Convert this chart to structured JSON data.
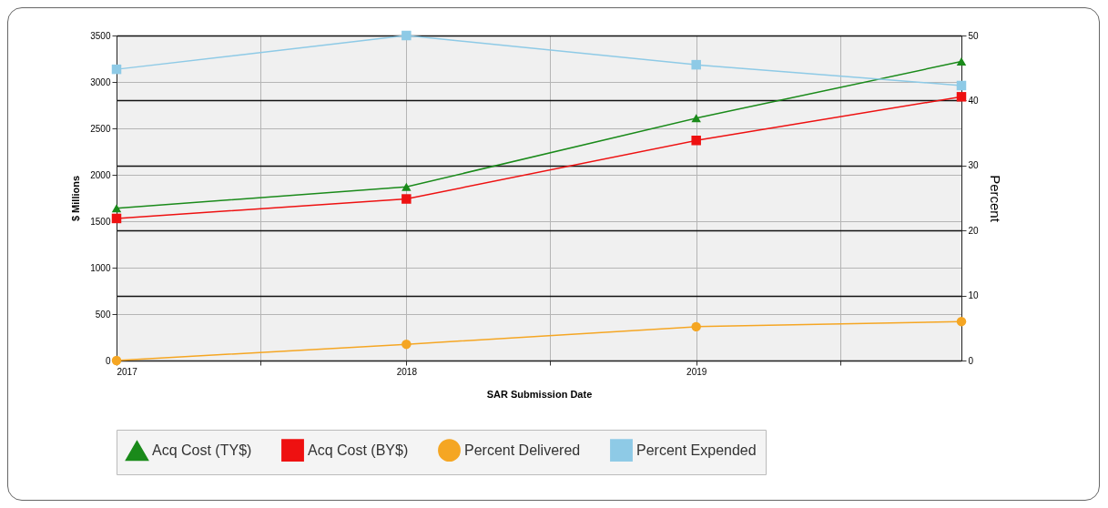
{
  "chart_data": {
    "type": "line",
    "xlabel": "SAR Submission Date",
    "ylabel": "$ Millions",
    "y2label": "Percent",
    "x": [
      "2017-01",
      "2018-01",
      "2019-01",
      "2019-12"
    ],
    "xlim": [
      "2017-01",
      "2019-12"
    ],
    "xticks": [
      {
        "value": "2017-01",
        "label": "2017"
      },
      {
        "value": "2017-07",
        "label": null
      },
      {
        "value": "2018-01",
        "label": "2018"
      },
      {
        "value": "2018-07",
        "label": null
      },
      {
        "value": "2019-01",
        "label": "2019"
      },
      {
        "value": "2019-07",
        "label": null
      }
    ],
    "ylim": [
      0,
      3500
    ],
    "yticks": [
      0,
      500,
      1000,
      1500,
      2000,
      2500,
      3000,
      3500
    ],
    "y2lim": [
      0,
      50
    ],
    "y2ticks": [
      0,
      10,
      20,
      30,
      40,
      50
    ],
    "series": [
      {
        "name": "Acq Cost (TY$)",
        "color": "#1a8a1a",
        "marker": "triangle",
        "values": [
          1640,
          1870,
          2610,
          3220
        ]
      },
      {
        "name": "Acq Cost (BY$)",
        "color": "#ee1111",
        "marker": "square",
        "values": [
          1530,
          1740,
          2370,
          2840
        ]
      },
      {
        "name": "Percent Delivered",
        "color": "#f5a623",
        "marker": "circle",
        "axis": "y2",
        "values": [
          0,
          2.5,
          5.2,
          6.0
        ]
      },
      {
        "name": "Percent Expended",
        "color": "#8ecae6",
        "marker": "square",
        "axis": "y2",
        "values": [
          44.8,
          50,
          45.5,
          42.3
        ]
      }
    ],
    "grid": true,
    "legend": "bottom"
  }
}
